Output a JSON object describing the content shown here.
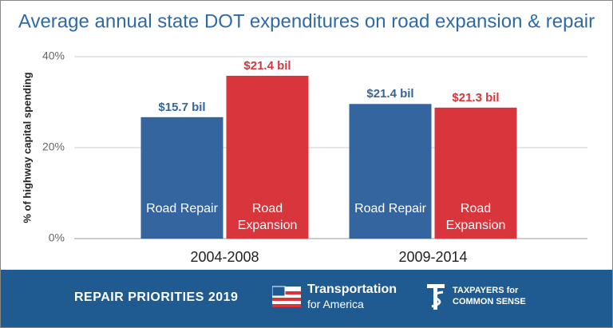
{
  "chart_data": {
    "type": "bar",
    "title": "Average annual state DOT expenditures on road expansion & repair",
    "ylabel": "% of highway capital spending",
    "categories": [
      "2004-2008",
      "2009-2014"
    ],
    "series": [
      {
        "name": "Road Repair",
        "color": "#35659f",
        "values": [
          26.7,
          29.6
        ],
        "annotations": [
          "$15.7 bil",
          "$21.4 bil"
        ]
      },
      {
        "name": "Road Expansion",
        "color": "#d8363c",
        "values": [
          35.8,
          28.8
        ],
        "annotations": [
          "$21.4 bil",
          "$21.3 bil"
        ]
      }
    ],
    "ylim": [
      0,
      40
    ],
    "yticks": [
      {
        "value": 0,
        "label": "0%"
      },
      {
        "value": 20,
        "label": "20%"
      },
      {
        "value": 40,
        "label": "40%"
      }
    ],
    "grid": true
  },
  "footer": {
    "title": "REPAIR PRIORITIES 2019",
    "logos": [
      {
        "name": "Transportation",
        "tagline": "for America"
      },
      {
        "name": "TAXPAYERS for",
        "tagline": "COMMON SENSE"
      }
    ]
  }
}
